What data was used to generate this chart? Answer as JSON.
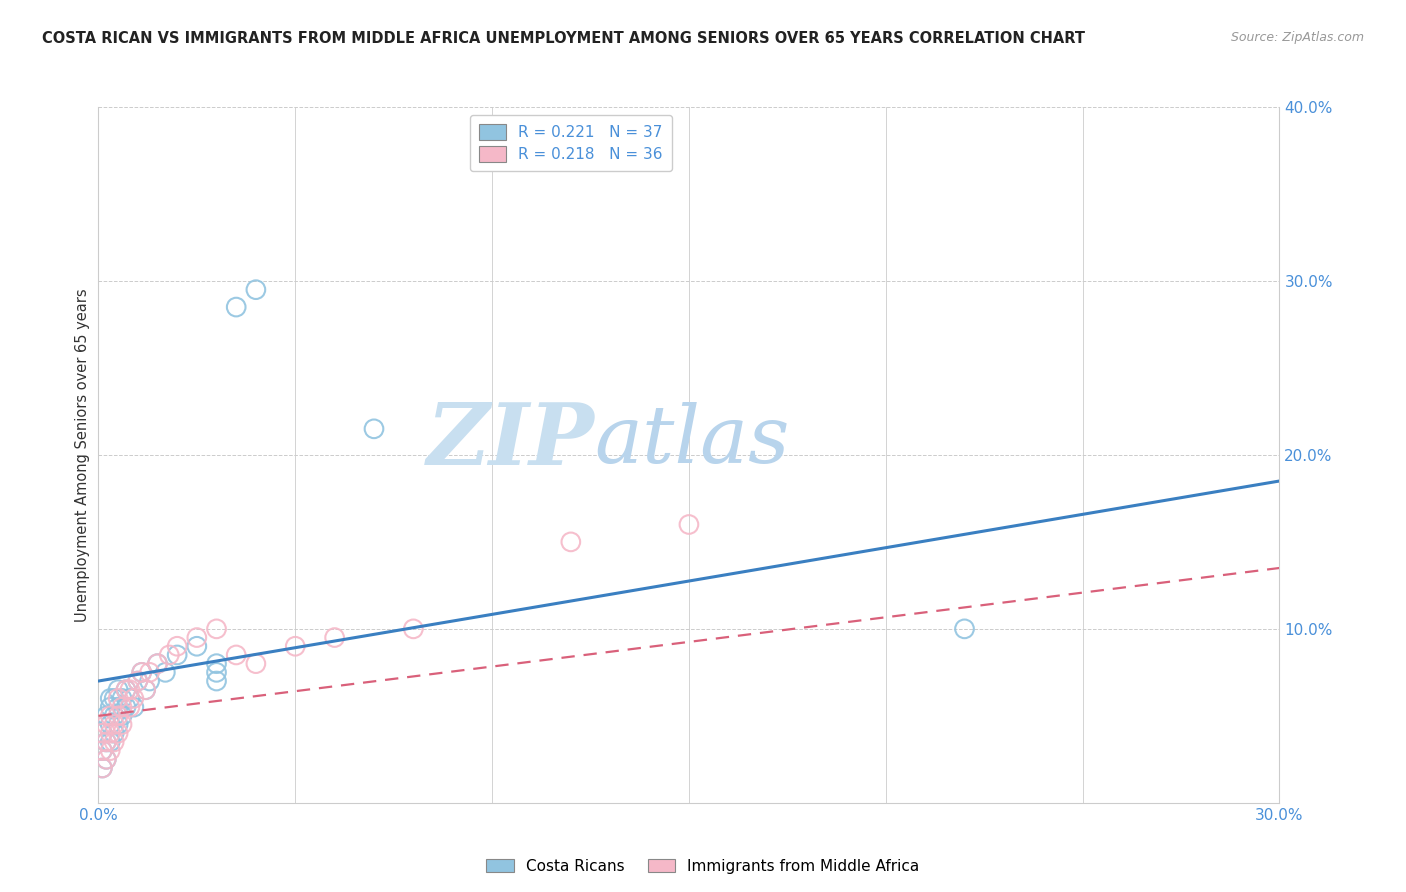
{
  "title": "COSTA RICAN VS IMMIGRANTS FROM MIDDLE AFRICA UNEMPLOYMENT AMONG SENIORS OVER 65 YEARS CORRELATION CHART",
  "source": "Source: ZipAtlas.com",
  "ylabel": "Unemployment Among Seniors over 65 years",
  "legend_label1": "Costa Ricans",
  "legend_label2": "Immigrants from Middle Africa",
  "R1": 0.221,
  "N1": 37,
  "R2": 0.218,
  "N2": 36,
  "xlim": [
    0.0,
    0.3
  ],
  "ylim": [
    0.0,
    0.4
  ],
  "ytick_positions": [
    0.1,
    0.2,
    0.3,
    0.4
  ],
  "ytick_labels": [
    "10.0%",
    "20.0%",
    "30.0%",
    "40.0%"
  ],
  "xtick_positions": [
    0.0,
    0.3
  ],
  "xtick_labels": [
    "0.0%",
    "30.0%"
  ],
  "color1": "#91c4e0",
  "color2": "#f5b8c8",
  "line_color1": "#3a7fc1",
  "line_color2": "#d9607a",
  "background_color": "#ffffff",
  "watermark_zip": "ZIP",
  "watermark_atlas": "atlas",
  "cr_line_x0": 0.0,
  "cr_line_y0": 0.07,
  "cr_line_x1": 0.3,
  "cr_line_y1": 0.185,
  "ma_line_x0": 0.0,
  "ma_line_y0": 0.05,
  "ma_line_x1": 0.3,
  "ma_line_y1": 0.135,
  "costa_rican_x": [
    0.001,
    0.001,
    0.001,
    0.002,
    0.002,
    0.002,
    0.003,
    0.003,
    0.003,
    0.003,
    0.004,
    0.004,
    0.004,
    0.005,
    0.005,
    0.005,
    0.006,
    0.006,
    0.007,
    0.007,
    0.008,
    0.009,
    0.01,
    0.011,
    0.012,
    0.013,
    0.015,
    0.017,
    0.02,
    0.025,
    0.03,
    0.035,
    0.04,
    0.03,
    0.07,
    0.03,
    0.22
  ],
  "costa_rican_y": [
    0.03,
    0.04,
    0.02,
    0.05,
    0.035,
    0.025,
    0.045,
    0.055,
    0.035,
    0.06,
    0.04,
    0.05,
    0.06,
    0.045,
    0.055,
    0.065,
    0.05,
    0.06,
    0.055,
    0.065,
    0.06,
    0.055,
    0.07,
    0.075,
    0.065,
    0.07,
    0.08,
    0.075,
    0.085,
    0.09,
    0.08,
    0.285,
    0.295,
    0.075,
    0.215,
    0.07,
    0.1
  ],
  "middle_africa_x": [
    0.001,
    0.001,
    0.001,
    0.002,
    0.002,
    0.002,
    0.003,
    0.003,
    0.003,
    0.004,
    0.004,
    0.005,
    0.005,
    0.005,
    0.006,
    0.006,
    0.007,
    0.008,
    0.008,
    0.009,
    0.01,
    0.011,
    0.012,
    0.013,
    0.015,
    0.018,
    0.02,
    0.025,
    0.03,
    0.035,
    0.04,
    0.05,
    0.06,
    0.08,
    0.12,
    0.15
  ],
  "middle_africa_y": [
    0.02,
    0.03,
    0.04,
    0.025,
    0.035,
    0.045,
    0.03,
    0.04,
    0.05,
    0.035,
    0.045,
    0.04,
    0.05,
    0.06,
    0.045,
    0.055,
    0.065,
    0.055,
    0.065,
    0.06,
    0.07,
    0.075,
    0.065,
    0.075,
    0.08,
    0.085,
    0.09,
    0.095,
    0.1,
    0.085,
    0.08,
    0.09,
    0.095,
    0.1,
    0.15,
    0.16
  ]
}
